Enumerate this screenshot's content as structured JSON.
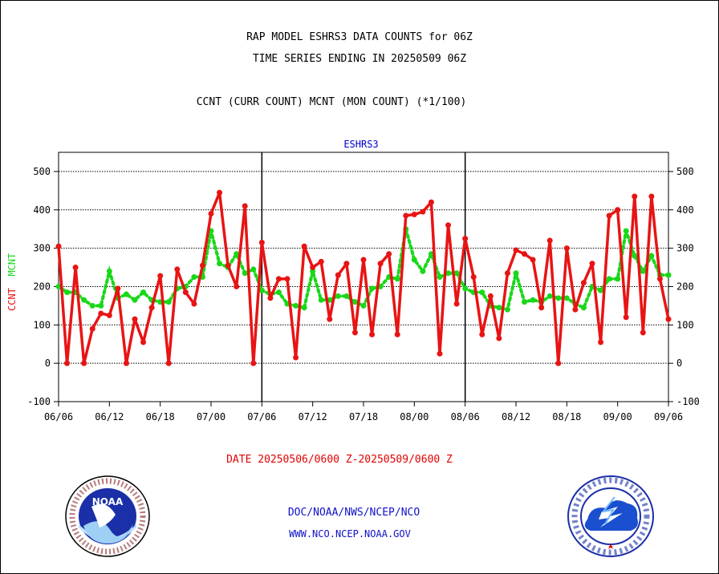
{
  "title_line1": "RAP MODEL ESHRS3 DATA COUNTS for 06Z",
  "title_line2": "TIME SERIES ENDING IN 20250509 06Z",
  "subtitle": "CCNT (CURR COUNT) MCNT (MON COUNT) (*1/100)",
  "panel_label": "ESHRS3",
  "y_label_ccnt": "CCNT",
  "y_label_mcnt": "MCNT",
  "date_range": "DATE 20250506/0600 Z-20250509/0600 Z",
  "credit_line1": "DOC/NOAA/NWS/NCEP/NCO",
  "credit_line2": "WWW.NCO.NCEP.NOAA.GOV",
  "logos": [
    "noaa-logo",
    "national-weather-service-logo"
  ],
  "colors": {
    "ccnt": "#e81414",
    "mcnt": "#18d818",
    "panel_label": "#0000cc",
    "credits": "#1010c8",
    "date_line": "#e00000"
  },
  "chart_data": {
    "type": "line",
    "title": "ESHRS3",
    "xlabel": "",
    "ylabel": "CCNT MCNT",
    "ylim": [
      -100,
      550
    ],
    "yticks": [
      -100,
      0,
      100,
      200,
      300,
      400,
      500
    ],
    "grid": true,
    "x_tick_labels": [
      "06/06",
      "06/12",
      "06/18",
      "07/00",
      "07/06",
      "07/12",
      "07/18",
      "08/00",
      "08/06",
      "08/12",
      "08/18",
      "09/00",
      "09/06"
    ],
    "x_count": 73,
    "series": [
      {
        "name": "CCNT",
        "values": [
          305,
          0,
          250,
          0,
          90,
          130,
          125,
          195,
          0,
          115,
          55,
          145,
          228,
          0,
          245,
          185,
          155,
          255,
          390,
          445,
          255,
          200,
          410,
          0,
          315,
          170,
          220,
          220,
          15,
          305,
          250,
          265,
          115,
          230,
          260,
          80,
          270,
          75,
          260,
          285,
          75,
          385,
          388,
          395,
          420,
          25,
          360,
          155,
          325,
          225,
          75,
          175,
          65,
          235,
          295,
          285,
          270,
          145,
          320,
          0,
          300,
          140,
          210,
          260,
          55,
          385,
          400,
          120,
          435,
          80,
          435,
          220,
          115
        ]
      },
      {
        "name": "MCNT",
        "values": [
          200,
          185,
          185,
          165,
          150,
          150,
          240,
          170,
          180,
          165,
          185,
          165,
          160,
          160,
          195,
          200,
          225,
          225,
          345,
          260,
          250,
          285,
          235,
          245,
          190,
          180,
          185,
          155,
          150,
          145,
          240,
          165,
          165,
          175,
          175,
          160,
          150,
          195,
          200,
          225,
          220,
          350,
          270,
          240,
          285,
          225,
          235,
          235,
          195,
          185,
          185,
          150,
          145,
          140,
          235,
          160,
          165,
          160,
          175,
          170,
          170,
          155,
          145,
          200,
          190,
          220,
          220,
          345,
          280,
          240,
          280,
          230,
          230
        ]
      }
    ]
  }
}
